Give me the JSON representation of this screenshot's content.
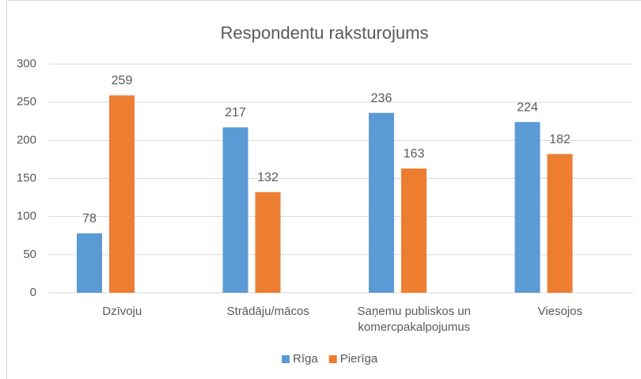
{
  "chart_data": {
    "type": "bar",
    "title": "Respondentu raksturojums",
    "categories": [
      "Dzīvoju",
      "Strādāju/mācos",
      "Saņemu publiskos un komercpakalpojumus",
      "Viesojos"
    ],
    "series": [
      {
        "name": "Rīga",
        "color": "#5b9bd5",
        "values": [
          78,
          217,
          236,
          224
        ]
      },
      {
        "name": "Pierīga",
        "color": "#ed7d31",
        "values": [
          259,
          132,
          163,
          182
        ]
      }
    ],
    "ylim": [
      0,
      300
    ],
    "yticks": [
      0,
      50,
      100,
      150,
      200,
      250,
      300
    ],
    "grid": true,
    "legend": "bottom"
  }
}
